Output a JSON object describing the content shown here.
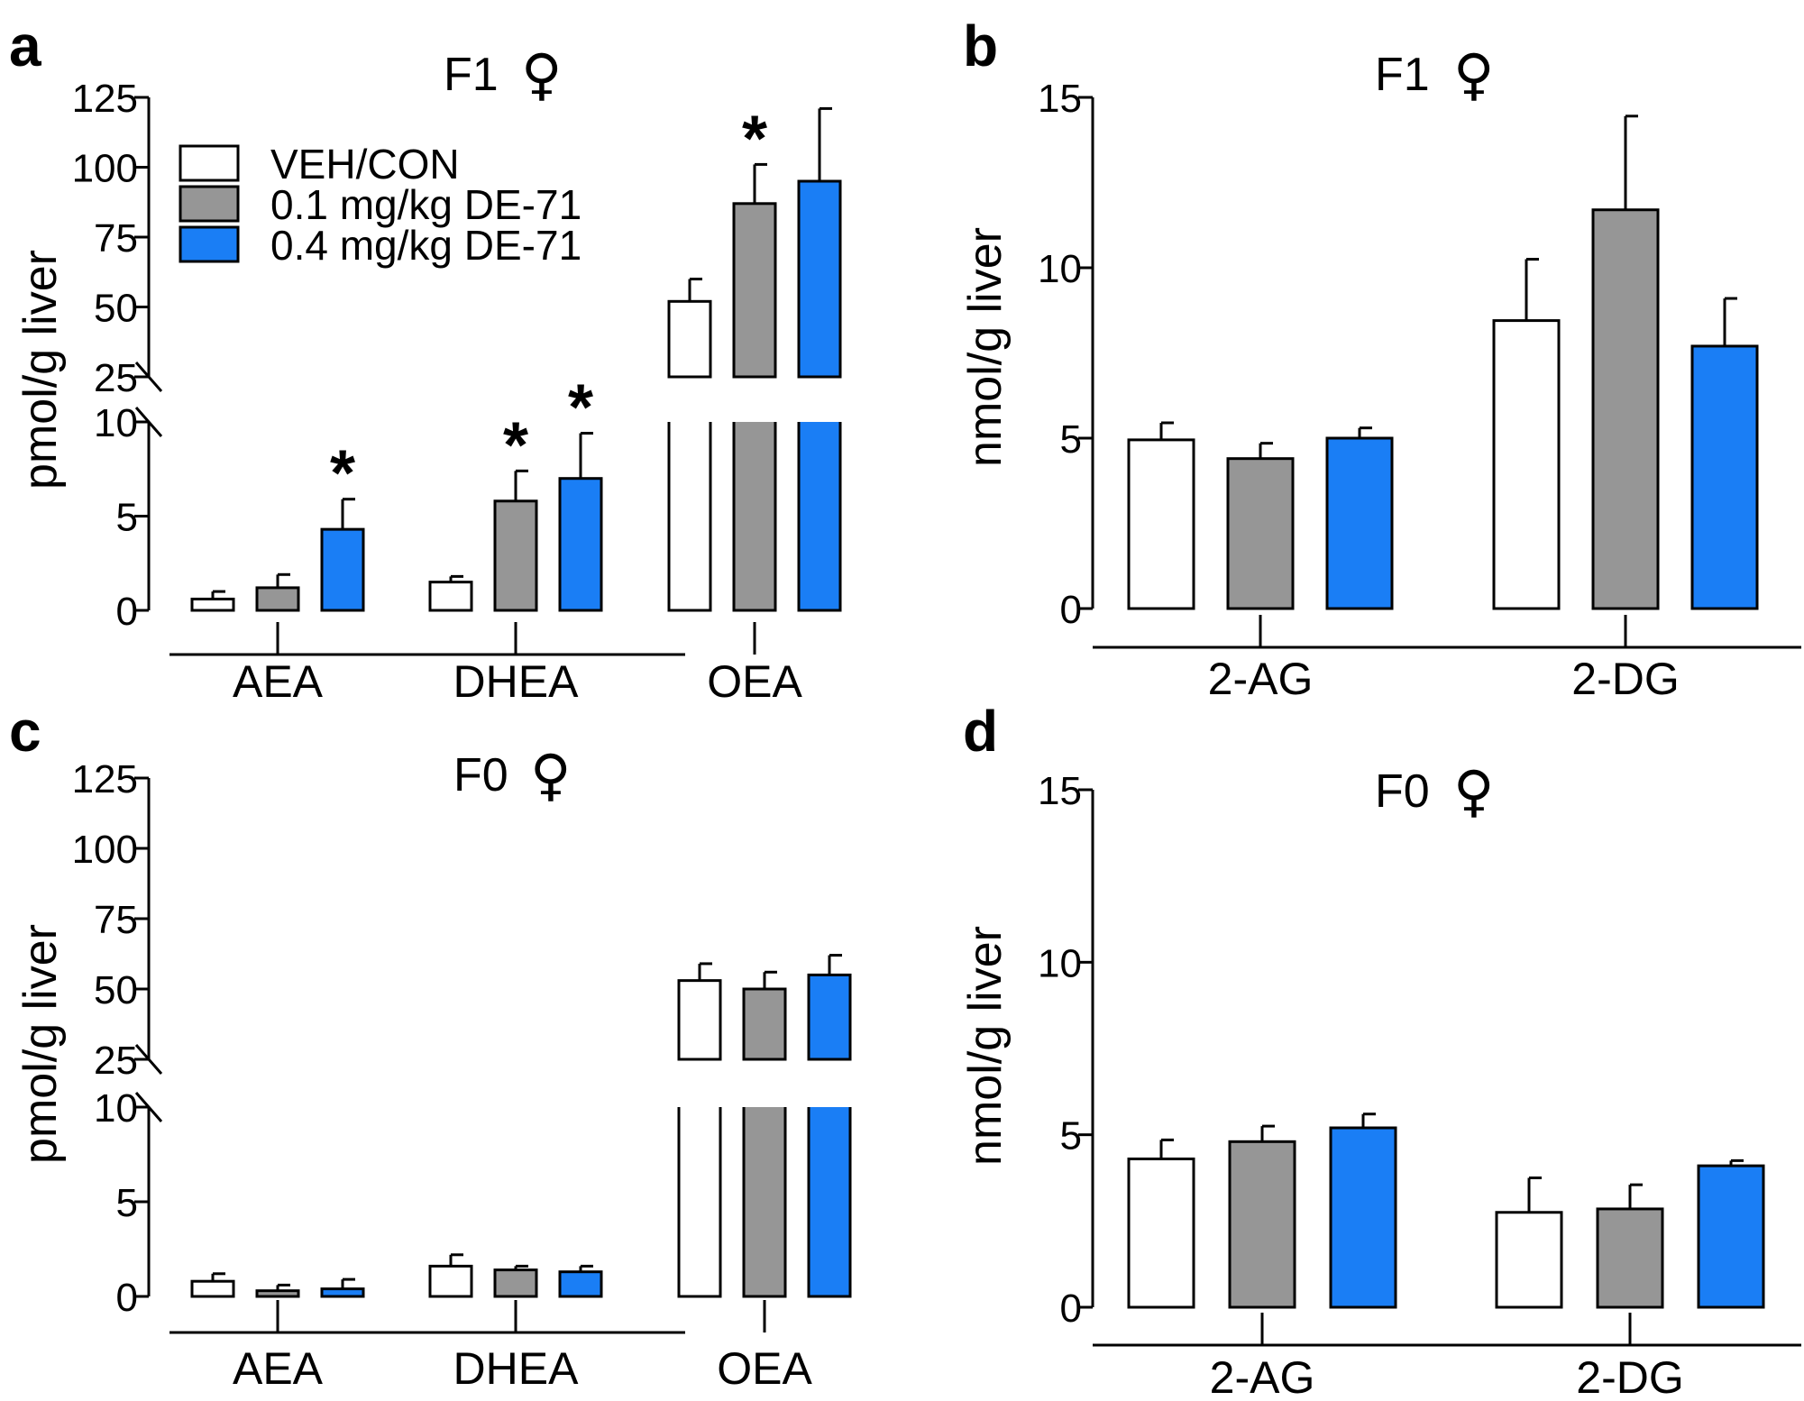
{
  "legend": {
    "items": [
      {
        "label": "VEH/CON",
        "color": "#ffffff"
      },
      {
        "label": "0.1 mg/kg DE-71",
        "color": "#969696"
      },
      {
        "label": "0.4 mg/kg DE-71",
        "color": "#1a7ef5"
      }
    ]
  },
  "colors": {
    "veh": "#ffffff",
    "low": "#969696",
    "high": "#1a7ef5",
    "axis": "#000000"
  },
  "significance_marker": "*",
  "chart_data": [
    {
      "panel": "a",
      "type": "bar",
      "title": "F1",
      "sex_symbol": "♀",
      "ylabel": "pmol/g liver",
      "xlabel": "",
      "axis_break": {
        "lower": [
          0,
          10
        ],
        "upper": [
          25,
          125
        ]
      },
      "yticks_lower": [
        "0",
        "5",
        "10"
      ],
      "yticks_upper": [
        "25",
        "50",
        "75",
        "100",
        "125"
      ],
      "categories": [
        "AEA",
        "DHEA",
        "OEA"
      ],
      "series": [
        {
          "name": "VEH/CON",
          "values": [
            0.6,
            1.5,
            52
          ],
          "errors": [
            0.4,
            0.3,
            8
          ],
          "significant": [
            false,
            false,
            false
          ]
        },
        {
          "name": "0.1 mg/kg DE-71",
          "values": [
            1.2,
            5.8,
            87
          ],
          "errors": [
            0.7,
            1.6,
            14
          ],
          "significant": [
            false,
            true,
            true
          ]
        },
        {
          "name": "0.4 mg/kg DE-71",
          "values": [
            4.3,
            7.0,
            95
          ],
          "errors": [
            1.6,
            2.4,
            26
          ],
          "significant": [
            true,
            true,
            false
          ]
        }
      ]
    },
    {
      "panel": "b",
      "type": "bar",
      "title": "F1",
      "sex_symbol": "♀",
      "ylabel": "nmol/g liver",
      "xlabel": "",
      "ylim": [
        0,
        15
      ],
      "yticks": [
        "0",
        "5",
        "10",
        "15"
      ],
      "categories": [
        "2-AG",
        "2-DG"
      ],
      "series": [
        {
          "name": "VEH/CON",
          "values": [
            4.95,
            8.45
          ],
          "errors": [
            0.5,
            1.8
          ]
        },
        {
          "name": "0.1 mg/kg DE-71",
          "values": [
            4.4,
            11.7
          ],
          "errors": [
            0.45,
            2.75
          ]
        },
        {
          "name": "0.4 mg/kg DE-71",
          "values": [
            5.0,
            7.7
          ],
          "errors": [
            0.3,
            1.4
          ]
        }
      ]
    },
    {
      "panel": "c",
      "type": "bar",
      "title": "F0",
      "sex_symbol": "♀",
      "ylabel": "pmol/g liver",
      "xlabel": "",
      "axis_break": {
        "lower": [
          0,
          10
        ],
        "upper": [
          25,
          125
        ]
      },
      "yticks_lower": [
        "0",
        "5",
        "10"
      ],
      "yticks_upper": [
        "25",
        "50",
        "75",
        "100",
        "125"
      ],
      "categories": [
        "AEA",
        "DHEA",
        "OEA"
      ],
      "series": [
        {
          "name": "VEH/CON",
          "values": [
            0.8,
            1.6,
            53
          ],
          "errors": [
            0.4,
            0.6,
            6
          ],
          "significant": [
            false,
            false,
            false
          ]
        },
        {
          "name": "0.1 mg/kg DE-71",
          "values": [
            0.3,
            1.4,
            50
          ],
          "errors": [
            0.3,
            0.2,
            6
          ],
          "significant": [
            false,
            false,
            false
          ]
        },
        {
          "name": "0.4 mg/kg DE-71",
          "values": [
            0.4,
            1.3,
            55
          ],
          "errors": [
            0.5,
            0.3,
            7
          ],
          "significant": [
            false,
            false,
            false
          ]
        }
      ]
    },
    {
      "panel": "d",
      "type": "bar",
      "title": "F0",
      "sex_symbol": "♀",
      "ylabel": "nmol/g liver",
      "xlabel": "",
      "ylim": [
        0,
        15
      ],
      "yticks": [
        "0",
        "5",
        "10",
        "15"
      ],
      "categories": [
        "2-AG",
        "2-DG"
      ],
      "series": [
        {
          "name": "VEH/CON",
          "values": [
            4.3,
            2.75
          ],
          "errors": [
            0.55,
            1.0
          ]
        },
        {
          "name": "0.1 mg/kg DE-71",
          "values": [
            4.8,
            2.85
          ],
          "errors": [
            0.45,
            0.7
          ]
        },
        {
          "name": "0.4 mg/kg DE-71",
          "values": [
            5.2,
            4.1
          ],
          "errors": [
            0.4,
            0.15
          ]
        }
      ]
    }
  ]
}
